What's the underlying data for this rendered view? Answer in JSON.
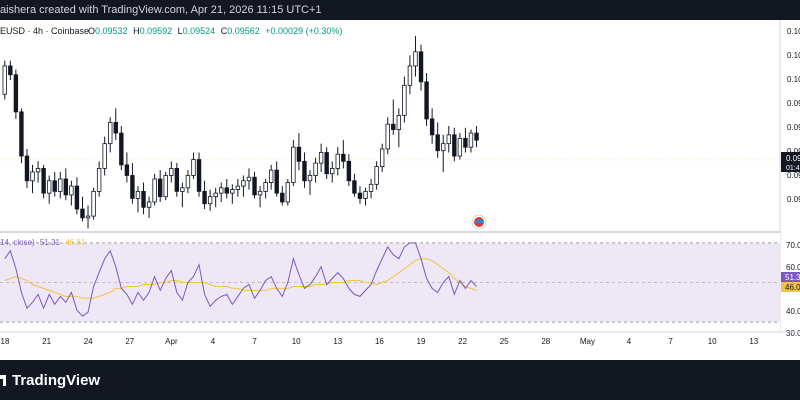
{
  "topbar": {
    "text": "aishera created with TradingView.com, Apr 21, 2026 11:15 UTC+1"
  },
  "legend": {
    "symbol": "EUSD · 4h · Coinbase",
    "o_label": "O",
    "o_value": "0.09532",
    "h_label": "H",
    "h_value": "0.09592",
    "l_label": "L",
    "l_value": "0.09524",
    "c_label": "C",
    "c_value": "0.09562",
    "change": "+0.00029 (+0.30%)"
  },
  "price_axis": {
    "ticks": [
      "0.10",
      "0.10",
      "0.10",
      "0.09",
      "0.09",
      "0.09"
    ],
    "last_price_label": "0.09",
    "countdown_label": "01:4"
  },
  "rsi": {
    "legend": "14, close)",
    "value_label": "51.31",
    "ma_label": "46.81",
    "axis_ticks": [
      "70.0",
      "60.0",
      "50.0",
      "40.0",
      "30.0"
    ],
    "current_label": "51.3",
    "ma_current_label": "46.0",
    "upper_band": 70,
    "lower_band": 30
  },
  "time_axis": {
    "labels": [
      "18",
      "21",
      "24",
      "27",
      "Apr",
      "4",
      "7",
      "10",
      "13",
      "16",
      "19",
      "22",
      "25",
      "28",
      "May",
      "4",
      "7",
      "10",
      "13"
    ]
  },
  "footer": {
    "brand": "TradingView"
  },
  "colors": {
    "up": "#131722",
    "down": "#131722",
    "rsi_line": "#7e57c2",
    "rsi_ma": "#f5c242",
    "rsi_band": "#ede7f6",
    "background": "#ffffff",
    "footer": "#131722"
  },
  "chart_data": [
    {
      "type": "candlestick",
      "title": "EUSD · 4h · Coinbase",
      "ohlc": [
        [
          0.0988,
          0.1007,
          0.0985,
          0.1004
        ],
        [
          0.1004,
          0.1007,
          0.0996,
          0.0999
        ],
        [
          0.0999,
          0.1002,
          0.0974,
          0.0978
        ],
        [
          0.0978,
          0.098,
          0.0949,
          0.0953
        ],
        [
          0.0953,
          0.0957,
          0.0935,
          0.0939
        ],
        [
          0.0939,
          0.0948,
          0.0932,
          0.0944
        ],
        [
          0.0944,
          0.095,
          0.0938,
          0.0946
        ],
        [
          0.0946,
          0.0948,
          0.0929,
          0.0932
        ],
        [
          0.0932,
          0.0942,
          0.0926,
          0.0939
        ],
        [
          0.0939,
          0.0944,
          0.093,
          0.0933
        ],
        [
          0.0933,
          0.0944,
          0.0929,
          0.094
        ],
        [
          0.094,
          0.0946,
          0.0928,
          0.0931
        ],
        [
          0.0931,
          0.0939,
          0.0925,
          0.0936
        ],
        [
          0.0936,
          0.0941,
          0.092,
          0.0923
        ],
        [
          0.0923,
          0.093,
          0.0916,
          0.0918
        ],
        [
          0.0918,
          0.0925,
          0.0912,
          0.0919
        ],
        [
          0.0919,
          0.0935,
          0.0917,
          0.0933
        ],
        [
          0.0933,
          0.095,
          0.093,
          0.0946
        ],
        [
          0.0946,
          0.0964,
          0.0942,
          0.096
        ],
        [
          0.096,
          0.0975,
          0.0955,
          0.0972
        ],
        [
          0.0972,
          0.098,
          0.0962,
          0.0966
        ],
        [
          0.0966,
          0.097,
          0.0945,
          0.0948
        ],
        [
          0.0948,
          0.0955,
          0.0938,
          0.0942
        ],
        [
          0.0942,
          0.0949,
          0.0926,
          0.0929
        ],
        [
          0.0929,
          0.0936,
          0.0921,
          0.0933
        ],
        [
          0.0933,
          0.0938,
          0.092,
          0.0924
        ],
        [
          0.0924,
          0.093,
          0.0918,
          0.0927
        ],
        [
          0.0927,
          0.0943,
          0.0925,
          0.094
        ],
        [
          0.094,
          0.0945,
          0.0927,
          0.093
        ],
        [
          0.093,
          0.0944,
          0.0928,
          0.0942
        ],
        [
          0.0942,
          0.095,
          0.0938,
          0.0946
        ],
        [
          0.0946,
          0.0949,
          0.093,
          0.0933
        ],
        [
          0.0933,
          0.0938,
          0.0924,
          0.0935
        ],
        [
          0.0935,
          0.0945,
          0.0932,
          0.0942
        ],
        [
          0.0942,
          0.0955,
          0.094,
          0.0951
        ],
        [
          0.0951,
          0.0955,
          0.093,
          0.0933
        ],
        [
          0.0933,
          0.0939,
          0.0923,
          0.0926
        ],
        [
          0.0926,
          0.0934,
          0.0922,
          0.093
        ],
        [
          0.093,
          0.0935,
          0.0924,
          0.0932
        ],
        [
          0.0932,
          0.0938,
          0.0927,
          0.0935
        ],
        [
          0.0935,
          0.094,
          0.0929,
          0.0932
        ],
        [
          0.0932,
          0.0937,
          0.0926,
          0.0934
        ],
        [
          0.0934,
          0.094,
          0.093,
          0.0936
        ],
        [
          0.0936,
          0.0942,
          0.093,
          0.0939
        ],
        [
          0.0939,
          0.0946,
          0.0934,
          0.0941
        ],
        [
          0.0941,
          0.0944,
          0.0929,
          0.0931
        ],
        [
          0.0931,
          0.0936,
          0.0924,
          0.0933
        ],
        [
          0.0933,
          0.094,
          0.0929,
          0.0938
        ],
        [
          0.0938,
          0.0948,
          0.0934,
          0.0945
        ],
        [
          0.0945,
          0.095,
          0.093,
          0.0932
        ],
        [
          0.0932,
          0.0936,
          0.0925,
          0.0927
        ],
        [
          0.0927,
          0.094,
          0.0925,
          0.0938
        ],
        [
          0.0938,
          0.0962,
          0.0936,
          0.0958
        ],
        [
          0.0958,
          0.0966,
          0.0945,
          0.095
        ],
        [
          0.095,
          0.0955,
          0.0935,
          0.0939
        ],
        [
          0.0939,
          0.0945,
          0.0931,
          0.0942
        ],
        [
          0.0942,
          0.0952,
          0.0938,
          0.0949
        ],
        [
          0.0949,
          0.096,
          0.0944,
          0.0955
        ],
        [
          0.0955,
          0.0958,
          0.094,
          0.0943
        ],
        [
          0.0943,
          0.095,
          0.0938,
          0.0946
        ],
        [
          0.0946,
          0.0958,
          0.0942,
          0.0954
        ],
        [
          0.0954,
          0.0962,
          0.0946,
          0.095
        ],
        [
          0.095,
          0.0954,
          0.0936,
          0.0939
        ],
        [
          0.0939,
          0.0943,
          0.093,
          0.0932
        ],
        [
          0.0932,
          0.0936,
          0.0926,
          0.0929
        ],
        [
          0.0929,
          0.0935,
          0.0925,
          0.0933
        ],
        [
          0.0933,
          0.094,
          0.0929,
          0.0937
        ],
        [
          0.0937,
          0.095,
          0.0934,
          0.0947
        ],
        [
          0.0947,
          0.096,
          0.0944,
          0.0957
        ],
        [
          0.0957,
          0.0975,
          0.0954,
          0.0971
        ],
        [
          0.0971,
          0.0985,
          0.0965,
          0.0968
        ],
        [
          0.0968,
          0.098,
          0.0958,
          0.0976
        ],
        [
          0.0976,
          0.0998,
          0.0972,
          0.0993
        ],
        [
          0.0993,
          0.101,
          0.0988,
          0.1004
        ],
        [
          0.1004,
          0.1021,
          0.0998,
          0.1012
        ],
        [
          0.1012,
          0.1016,
          0.099,
          0.0995
        ],
        [
          0.0995,
          0.1,
          0.097,
          0.0974
        ],
        [
          0.0974,
          0.098,
          0.096,
          0.0965
        ],
        [
          0.0965,
          0.0972,
          0.0952,
          0.0956
        ],
        [
          0.0956,
          0.0965,
          0.0944,
          0.096
        ],
        [
          0.096,
          0.097,
          0.0955,
          0.0965
        ],
        [
          0.0965,
          0.0969,
          0.095,
          0.0953
        ],
        [
          0.0953,
          0.0966,
          0.0951,
          0.0963
        ],
        [
          0.0963,
          0.0969,
          0.0955,
          0.0958
        ],
        [
          0.0958,
          0.0968,
          0.0955,
          0.0966
        ],
        [
          0.0966,
          0.097,
          0.0958,
          0.0962
        ]
      ],
      "ylim": [
        0.091,
        0.103
      ]
    },
    {
      "type": "line",
      "title": "RSI (14, close)",
      "series": [
        {
          "name": "RSI",
          "values": [
            62,
            66,
            57,
            45,
            37,
            40,
            44,
            37,
            44,
            39,
            43,
            40,
            45,
            36,
            33,
            35,
            48,
            55,
            62,
            66,
            58,
            47,
            44,
            39,
            45,
            41,
            45,
            53,
            46,
            52,
            56,
            45,
            41,
            50,
            53,
            59,
            44,
            38,
            41,
            43,
            44,
            39,
            43,
            47,
            49,
            42,
            46,
            51,
            53,
            47,
            43,
            50,
            62,
            54,
            47,
            49,
            53,
            58,
            49,
            52,
            55,
            52,
            47,
            44,
            43,
            46,
            49,
            56,
            62,
            68,
            64,
            62,
            68,
            70,
            70,
            62,
            52,
            47,
            45,
            50,
            53,
            44,
            51,
            47,
            51,
            48
          ]
        },
        {
          "name": "MA",
          "values": [
            51,
            52,
            53,
            52,
            51,
            49,
            48,
            47,
            46,
            45,
            44,
            43,
            43,
            43,
            42,
            42,
            42,
            43,
            44,
            45,
            47,
            47,
            48,
            48,
            48,
            49,
            49,
            49,
            50,
            50,
            51,
            51,
            50,
            50,
            50,
            50,
            50,
            49,
            48,
            48,
            48,
            47,
            47,
            46,
            46,
            46,
            46,
            46,
            47,
            47,
            47,
            47,
            48,
            48,
            48,
            48,
            49,
            49,
            49,
            50,
            50,
            50,
            51,
            51,
            51,
            50,
            50,
            49,
            50,
            51,
            53,
            55,
            57,
            59,
            61,
            62,
            62,
            61,
            59,
            57,
            55,
            52,
            50,
            48,
            47,
            46
          ]
        }
      ],
      "ylim": [
        25,
        75
      ],
      "bands": [
        30,
        70
      ]
    }
  ]
}
